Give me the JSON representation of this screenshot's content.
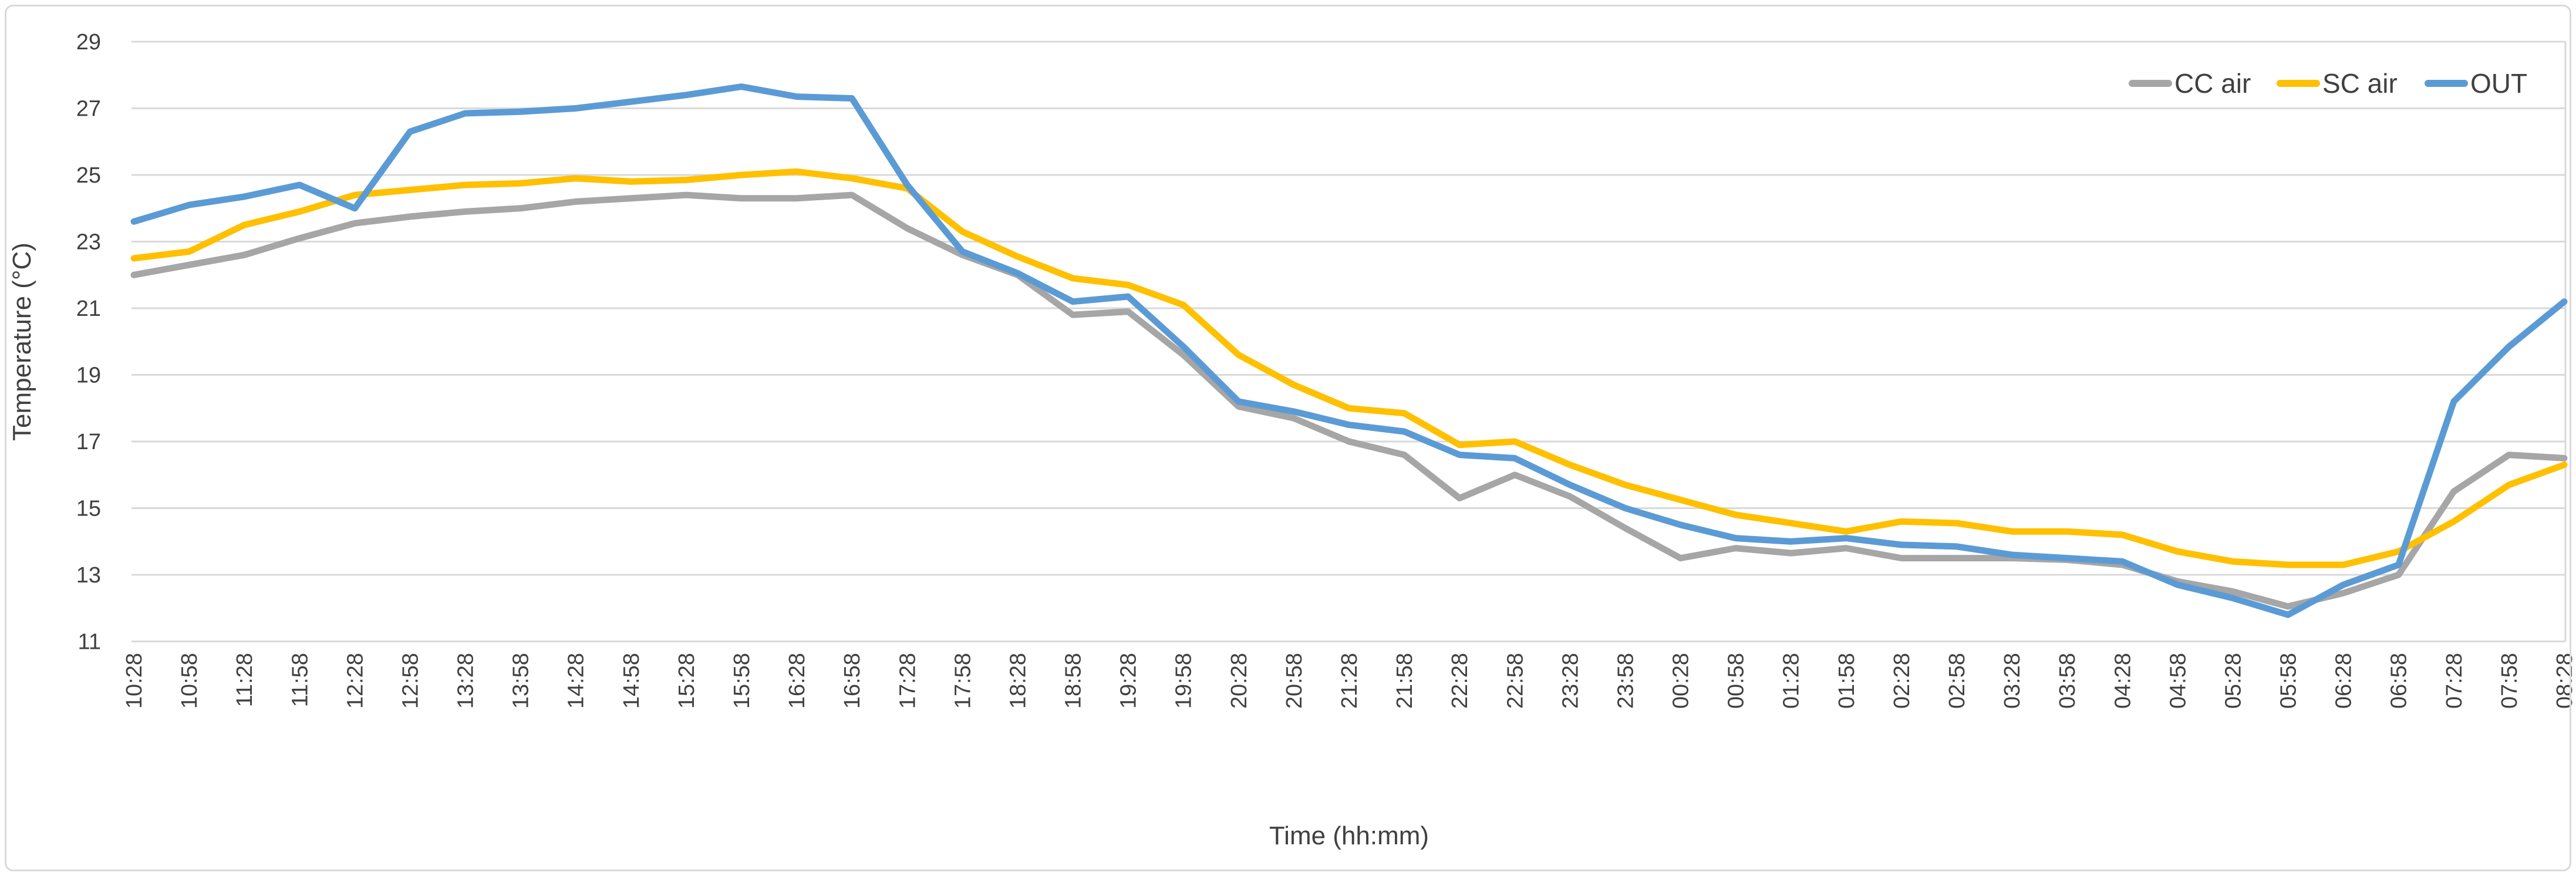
{
  "figure": {
    "background": "#ffffff",
    "border_color": "#d9d9d9",
    "gridline_color": "#d9d9d9",
    "text_color": "#404040"
  },
  "chart_data": {
    "type": "line",
    "title": "",
    "xlabel": "Time (hh:mm)",
    "ylabel": "Temperature (°C)",
    "ylim": [
      11,
      29
    ],
    "yticks": [
      29,
      27,
      25,
      23,
      21,
      19,
      17,
      15,
      13,
      11
    ],
    "grid": "horizontal",
    "legend_position": "top-right",
    "categories": [
      "10:28",
      "10:58",
      "11:28",
      "11:58",
      "12:28",
      "12:58",
      "13:28",
      "13:58",
      "14:28",
      "14:58",
      "15:28",
      "15:58",
      "16:28",
      "16:58",
      "17:28",
      "17:58",
      "18:28",
      "18:58",
      "19:28",
      "19:58",
      "20:28",
      "20:58",
      "21:28",
      "21:58",
      "22:28",
      "22:58",
      "23:28",
      "23:58",
      "00:28",
      "00:58",
      "01:28",
      "01:58",
      "02:28",
      "02:58",
      "03:28",
      "03:58",
      "04:28",
      "04:58",
      "05:28",
      "05:58",
      "06:28",
      "06:58",
      "07:28",
      "07:58",
      "08:28"
    ],
    "series": [
      {
        "name": "CC air",
        "color": "#a6a6a6",
        "values": [
          22.0,
          22.3,
          22.6,
          23.1,
          23.55,
          23.75,
          23.9,
          24.0,
          24.2,
          24.3,
          24.4,
          24.3,
          24.3,
          24.4,
          23.4,
          22.6,
          22.0,
          20.8,
          20.9,
          19.6,
          18.05,
          17.7,
          17.0,
          16.6,
          15.3,
          16.0,
          15.35,
          14.4,
          13.5,
          13.8,
          13.65,
          13.8,
          13.5,
          13.5,
          13.5,
          13.45,
          13.3,
          12.8,
          12.5,
          12.05,
          12.45,
          13.0,
          15.5,
          16.6,
          16.5
        ]
      },
      {
        "name": "SC air",
        "color": "#ffc000",
        "values": [
          22.5,
          22.7,
          23.5,
          23.9,
          24.4,
          24.55,
          24.7,
          24.75,
          24.9,
          24.8,
          24.85,
          25.0,
          25.1,
          24.9,
          24.6,
          23.3,
          22.55,
          21.9,
          21.7,
          21.1,
          19.6,
          18.7,
          18.0,
          17.85,
          16.9,
          17.0,
          16.3,
          15.7,
          15.25,
          14.8,
          14.55,
          14.3,
          14.6,
          14.55,
          14.3,
          14.3,
          14.2,
          13.7,
          13.4,
          13.3,
          13.3,
          13.7,
          14.6,
          15.7,
          16.3
        ]
      },
      {
        "name": "OUT",
        "color": "#5b9bd5",
        "values": [
          23.6,
          24.1,
          24.35,
          24.7,
          24.0,
          26.3,
          26.85,
          26.9,
          27.0,
          27.2,
          27.4,
          27.65,
          27.35,
          27.3,
          24.7,
          22.7,
          22.05,
          21.2,
          21.35,
          19.85,
          18.2,
          17.9,
          17.5,
          17.3,
          16.6,
          16.5,
          15.7,
          15.0,
          14.5,
          14.1,
          14.0,
          14.1,
          13.9,
          13.85,
          13.6,
          13.5,
          13.4,
          12.7,
          12.3,
          11.8,
          12.7,
          13.3,
          18.2,
          19.85,
          21.2
        ]
      }
    ]
  }
}
